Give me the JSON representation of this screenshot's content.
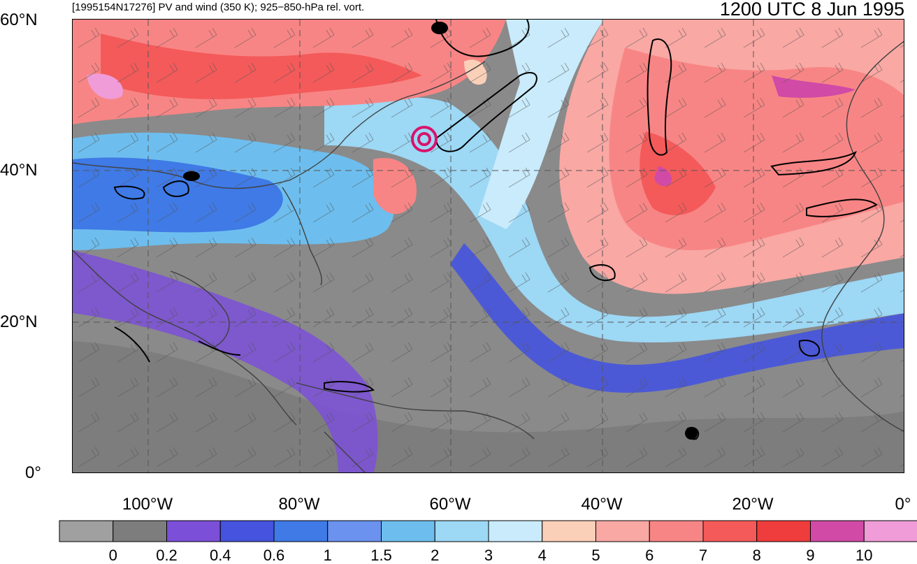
{
  "header": {
    "title_left": "[1995154N17276] PV and wind (350 K); 925−850-hPa rel. vort.",
    "title_right": "1200 UTC 8 Jun 1995"
  },
  "axes": {
    "lat_labels": [
      "60°N",
      "40°N",
      "20°N",
      "0°"
    ],
    "lon_labels": [
      "100°W",
      "80°W",
      "60°W",
      "40°W",
      "20°W",
      "0°"
    ]
  },
  "colorbar": {
    "colors": [
      "#a0a0a0",
      "#7d7d7d",
      "#7b4fd8",
      "#4553de",
      "#3f7ae6",
      "#6a92ee",
      "#6dbeee",
      "#9dd8f5",
      "#c9ebfb",
      "#fbd0b8",
      "#f9a8a4",
      "#f88585",
      "#f45a5a",
      "#ef3c3c",
      "#d14aa6",
      "#ef9cd8"
    ],
    "tick_labels": [
      "0",
      "0.2",
      "0.4",
      "0.6",
      "1",
      "1.5",
      "2",
      "3",
      "4",
      "5",
      "6",
      "7",
      "8",
      "9",
      "10"
    ]
  },
  "map": {
    "lon_range": [
      -110,
      0
    ],
    "lat_range": [
      0,
      60
    ],
    "gridline_lons": [
      -100,
      -80,
      -60,
      -40,
      -20
    ],
    "gridline_lats": [
      20,
      40
    ],
    "storm_marker_color": "#d8136b"
  }
}
